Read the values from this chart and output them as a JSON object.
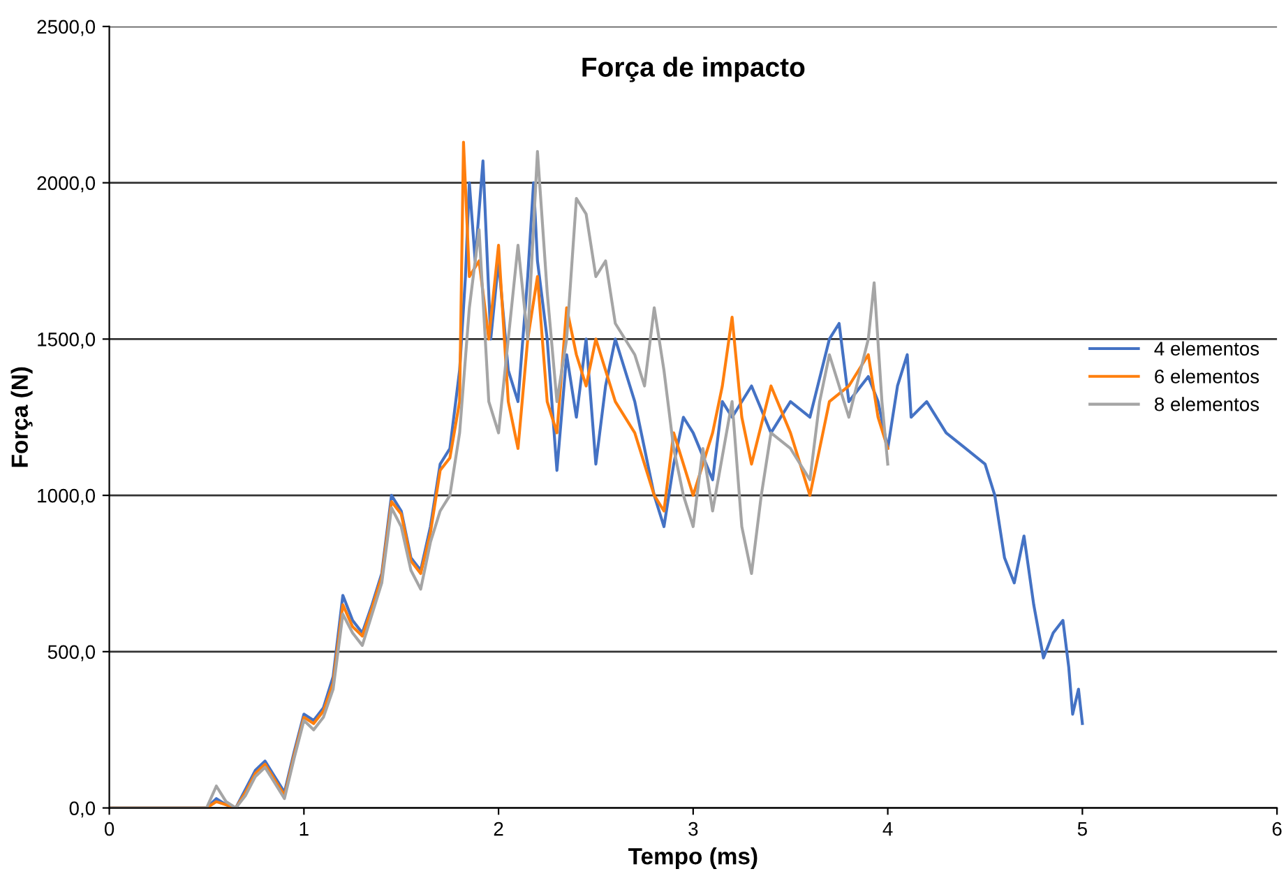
{
  "chart_data": {
    "type": "line",
    "title": "Força de impacto",
    "xlabel": "Tempo (ms)",
    "ylabel": "Força (N)",
    "xlim": [
      0,
      6
    ],
    "xticks": [
      0,
      1,
      2,
      3,
      4,
      5,
      6
    ],
    "ylim": [
      0,
      2500
    ],
    "yticks": [
      {
        "value": 0,
        "label": "0,0"
      },
      {
        "value": 500,
        "label": "500,0"
      },
      {
        "value": 1000,
        "label": "1000,0"
      },
      {
        "value": 1500,
        "label": "1500,0"
      },
      {
        "value": 2000,
        "label": "2000,0"
      },
      {
        "value": 2500,
        "label": "2500,0"
      }
    ],
    "grid": "y",
    "legend": "right",
    "marker": "none",
    "line_style": "solid",
    "series": [
      {
        "name": "4 elementos",
        "color": "#4472c4",
        "x": [
          0,
          0.5,
          0.55,
          0.6,
          0.65,
          0.7,
          0.75,
          0.8,
          0.85,
          0.9,
          0.95,
          1.0,
          1.05,
          1.1,
          1.15,
          1.2,
          1.25,
          1.3,
          1.35,
          1.4,
          1.45,
          1.5,
          1.55,
          1.6,
          1.65,
          1.7,
          1.75,
          1.8,
          1.83,
          1.85,
          1.88,
          1.92,
          1.96,
          2.0,
          2.05,
          2.1,
          2.15,
          2.18,
          2.2,
          2.25,
          2.3,
          2.35,
          2.4,
          2.45,
          2.5,
          2.55,
          2.6,
          2.7,
          2.75,
          2.8,
          2.85,
          2.9,
          2.95,
          3.0,
          3.1,
          3.15,
          3.2,
          3.3,
          3.4,
          3.5,
          3.6,
          3.7,
          3.75,
          3.8,
          3.9,
          3.95,
          4.0,
          4.05,
          4.1,
          4.12,
          4.2,
          4.3,
          4.4,
          4.5,
          4.55,
          4.6,
          4.65,
          4.7,
          4.75,
          4.8,
          4.85,
          4.9,
          4.93,
          4.95,
          4.98,
          5.0
        ],
        "values": [
          0,
          0,
          30,
          10,
          0,
          60,
          120,
          150,
          100,
          50,
          180,
          300,
          280,
          320,
          420,
          680,
          600,
          560,
          650,
          750,
          1000,
          950,
          800,
          760,
          900,
          1100,
          1150,
          1400,
          1700,
          2000,
          1750,
          2070,
          1500,
          1750,
          1400,
          1300,
          1700,
          2000,
          1750,
          1500,
          1080,
          1450,
          1250,
          1500,
          1100,
          1350,
          1500,
          1300,
          1150,
          1000,
          900,
          1100,
          1250,
          1200,
          1050,
          1300,
          1250,
          1350,
          1200,
          1300,
          1250,
          1500,
          1550,
          1300,
          1380,
          1300,
          1150,
          1350,
          1450,
          1250,
          1300,
          1200,
          1150,
          1100,
          1000,
          800,
          720,
          870,
          650,
          480,
          560,
          600,
          450,
          300,
          380,
          270
        ]
      },
      {
        "name": "6 elementos",
        "color": "#ff7f0e",
        "x": [
          0,
          0.5,
          0.55,
          0.6,
          0.65,
          0.7,
          0.75,
          0.8,
          0.85,
          0.9,
          0.95,
          1.0,
          1.05,
          1.1,
          1.15,
          1.2,
          1.25,
          1.3,
          1.35,
          1.4,
          1.45,
          1.5,
          1.55,
          1.6,
          1.65,
          1.7,
          1.75,
          1.8,
          1.82,
          1.85,
          1.9,
          1.95,
          2.0,
          2.05,
          2.1,
          2.15,
          2.2,
          2.25,
          2.3,
          2.35,
          2.4,
          2.45,
          2.5,
          2.6,
          2.7,
          2.75,
          2.8,
          2.85,
          2.9,
          3.0,
          3.1,
          3.15,
          3.2,
          3.25,
          3.3,
          3.4,
          3.5,
          3.6,
          3.7,
          3.8,
          3.9,
          3.95,
          4.0
        ],
        "values": [
          0,
          0,
          20,
          10,
          0,
          50,
          110,
          140,
          90,
          40,
          170,
          290,
          270,
          310,
          400,
          650,
          580,
          550,
          640,
          740,
          980,
          940,
          790,
          750,
          880,
          1080,
          1120,
          1300,
          2130,
          1700,
          1750,
          1500,
          1800,
          1300,
          1150,
          1500,
          1700,
          1300,
          1200,
          1600,
          1450,
          1350,
          1500,
          1300,
          1200,
          1100,
          1000,
          950,
          1200,
          1000,
          1200,
          1350,
          1570,
          1250,
          1100,
          1350,
          1200,
          1000,
          1300,
          1350,
          1450,
          1250,
          1150
        ]
      },
      {
        "name": "8 elementos",
        "color": "#a5a5a5",
        "x": [
          0,
          0.5,
          0.55,
          0.6,
          0.65,
          0.7,
          0.75,
          0.8,
          0.85,
          0.9,
          0.95,
          1.0,
          1.05,
          1.1,
          1.15,
          1.2,
          1.25,
          1.3,
          1.35,
          1.4,
          1.45,
          1.5,
          1.55,
          1.6,
          1.65,
          1.7,
          1.75,
          1.8,
          1.85,
          1.9,
          1.95,
          2.0,
          2.05,
          2.1,
          2.15,
          2.2,
          2.25,
          2.3,
          2.35,
          2.4,
          2.45,
          2.5,
          2.55,
          2.6,
          2.7,
          2.75,
          2.8,
          2.85,
          2.9,
          2.95,
          3.0,
          3.05,
          3.1,
          3.2,
          3.25,
          3.3,
          3.35,
          3.4,
          3.5,
          3.6,
          3.65,
          3.7,
          3.8,
          3.9,
          3.93,
          3.97,
          4.0
        ],
        "values": [
          0,
          0,
          70,
          20,
          0,
          40,
          100,
          130,
          80,
          30,
          160,
          280,
          250,
          290,
          380,
          620,
          560,
          520,
          620,
          720,
          960,
          900,
          760,
          700,
          850,
          950,
          1000,
          1200,
          1600,
          1850,
          1300,
          1200,
          1500,
          1800,
          1500,
          2100,
          1650,
          1300,
          1500,
          1950,
          1900,
          1700,
          1750,
          1550,
          1450,
          1350,
          1600,
          1400,
          1150,
          1000,
          900,
          1150,
          950,
          1300,
          900,
          750,
          1000,
          1200,
          1150,
          1050,
          1300,
          1450,
          1250,
          1500,
          1680,
          1300,
          1100
        ]
      }
    ]
  }
}
